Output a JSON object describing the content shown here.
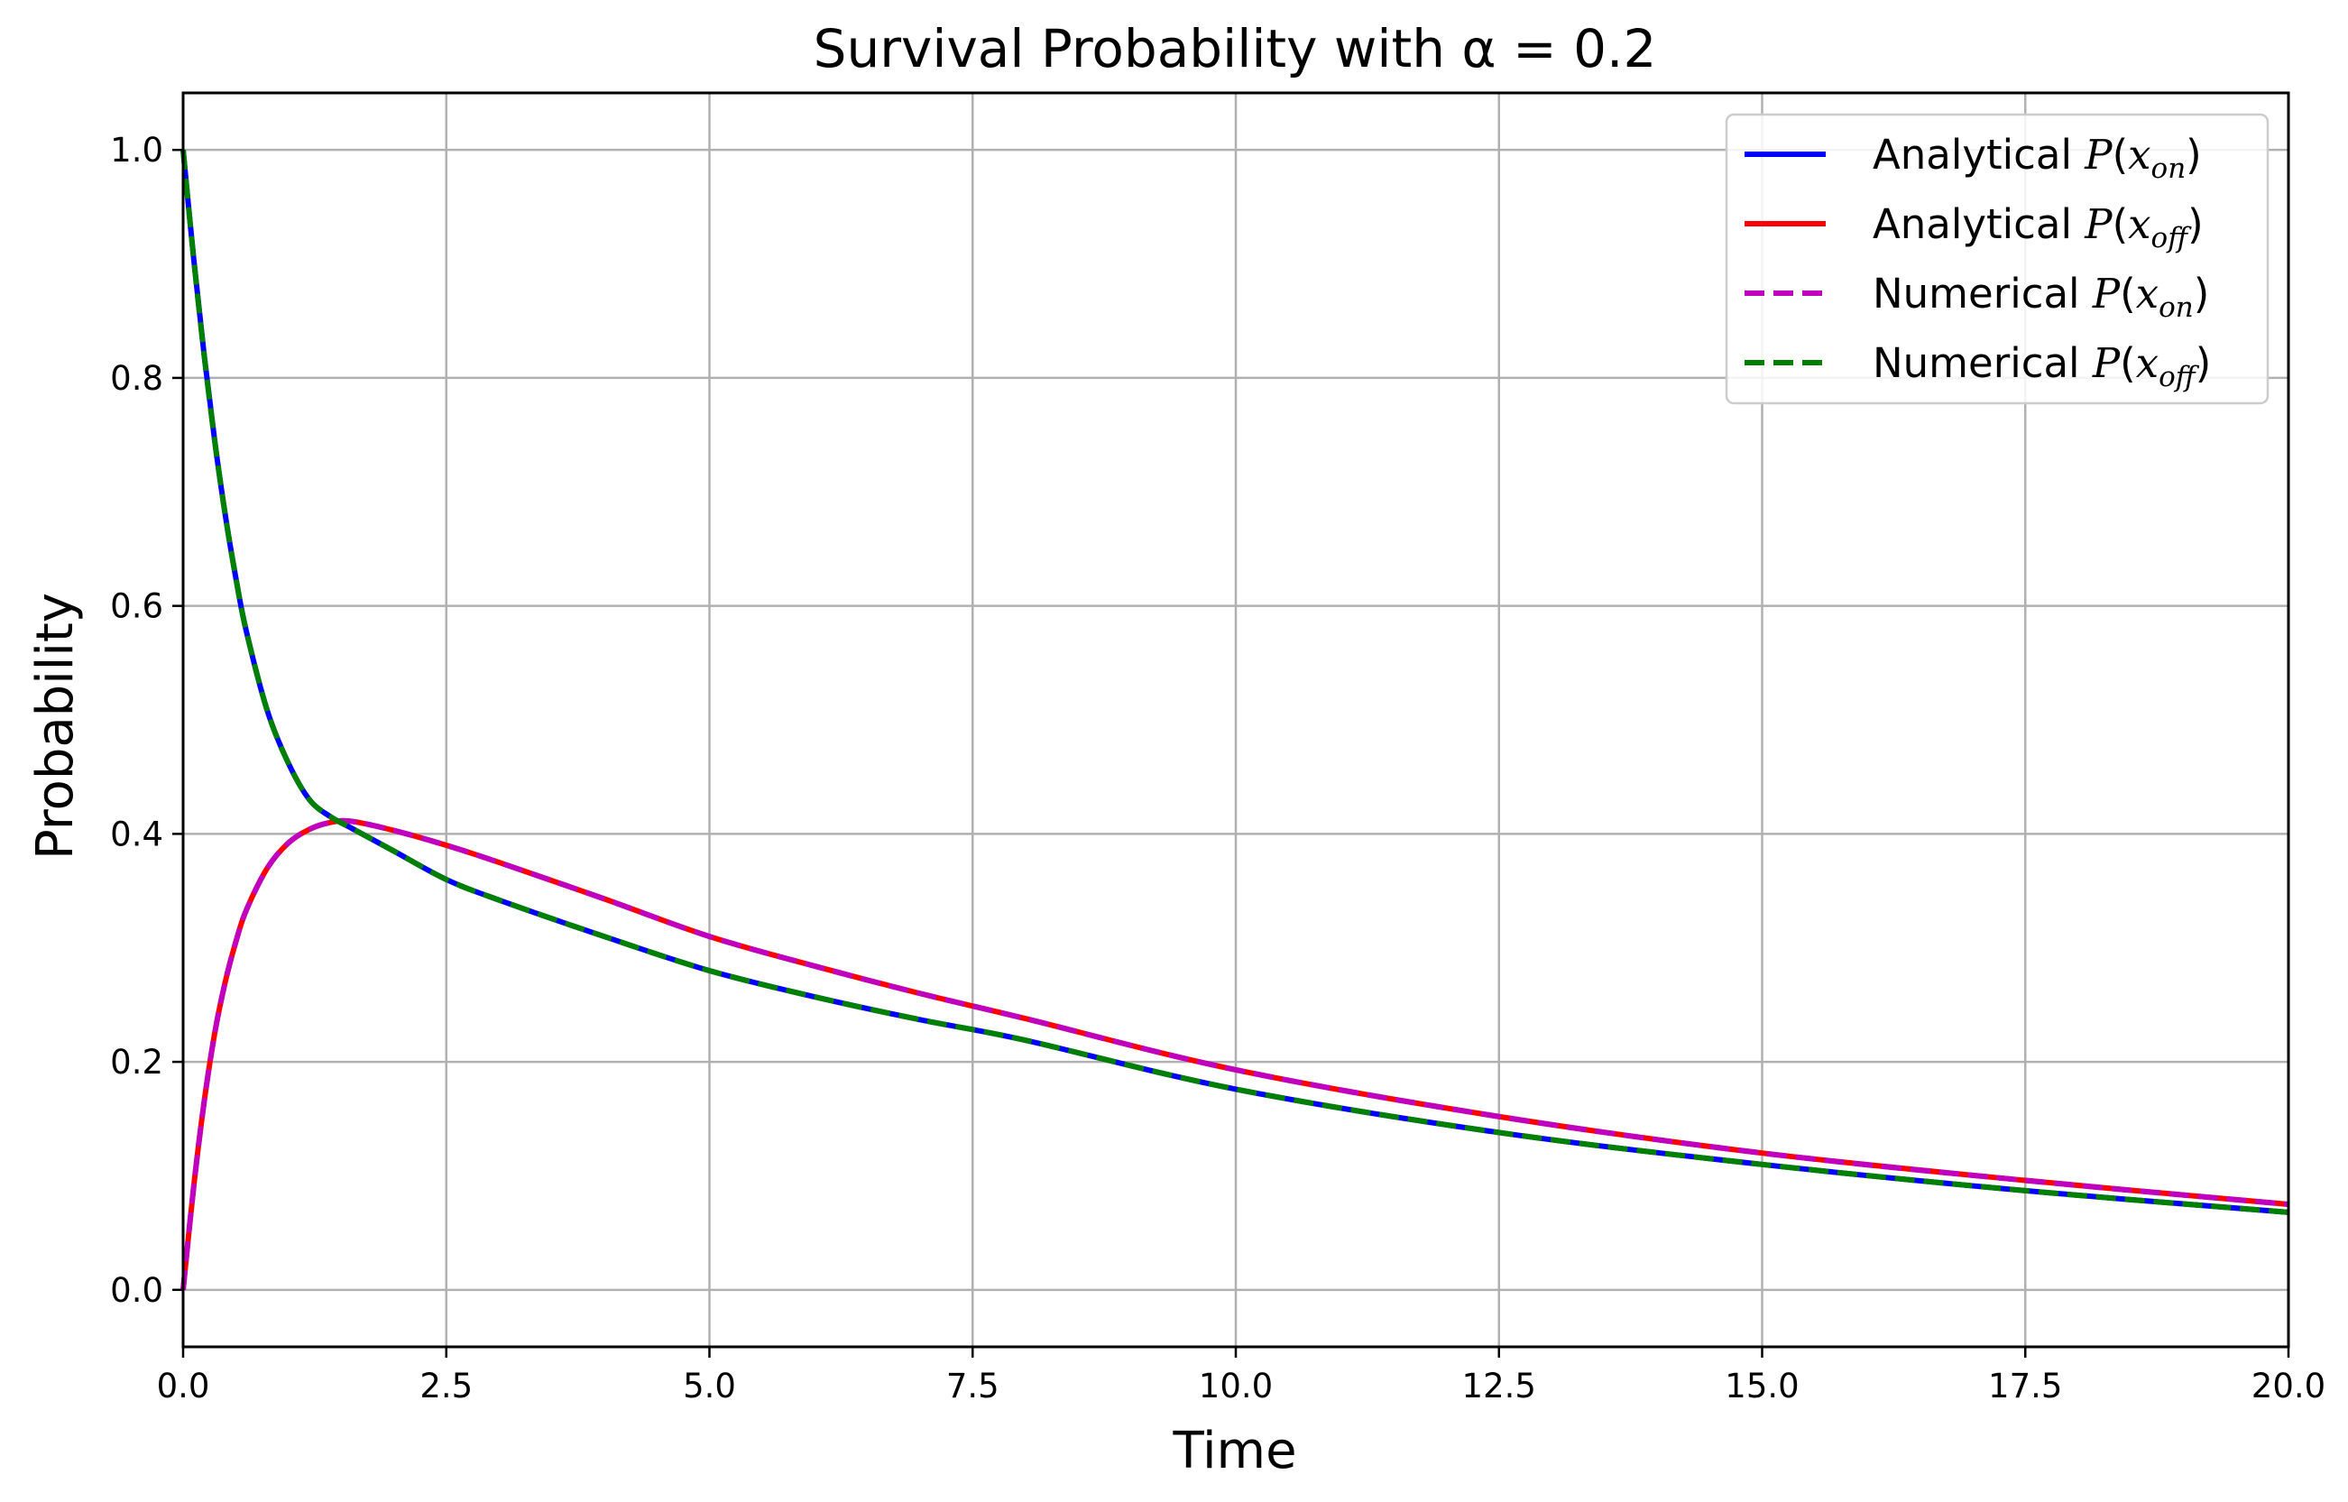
{
  "chart_data": {
    "type": "line",
    "title": "Survival Probability with α = 0.2",
    "xlabel": "Time",
    "ylabel": "Probability",
    "xlim": [
      0,
      20
    ],
    "ylim": [
      -0.05,
      1.05
    ],
    "grid": true,
    "legend_position": "top-right",
    "x_ticks": [
      {
        "value": 0,
        "label": "0.0"
      },
      {
        "value": 2.5,
        "label": "2.5"
      },
      {
        "value": 5,
        "label": "5.0"
      },
      {
        "value": 7.5,
        "label": "7.5"
      },
      {
        "value": 10,
        "label": "10.0"
      },
      {
        "value": 12.5,
        "label": "12.5"
      },
      {
        "value": 15,
        "label": "15.0"
      },
      {
        "value": 17.5,
        "label": "17.5"
      },
      {
        "value": 20,
        "label": "20.0"
      }
    ],
    "y_ticks": [
      {
        "value": 0,
        "label": "0.0"
      },
      {
        "value": 0.2,
        "label": "0.2"
      },
      {
        "value": 0.4,
        "label": "0.4"
      },
      {
        "value": 0.6,
        "label": "0.6"
      },
      {
        "value": 0.8,
        "label": "0.8"
      },
      {
        "value": 1.0,
        "label": "1.0"
      }
    ],
    "x": [
      0,
      0.1,
      0.2,
      0.3,
      0.4,
      0.5,
      0.6,
      0.8,
      1.0,
      1.2,
      1.4,
      1.6,
      2.0,
      2.5,
      3.0,
      4.0,
      5.0,
      6.0,
      7.0,
      8.0,
      10.0,
      12.5,
      15.0,
      17.5,
      20.0
    ],
    "series": [
      {
        "name": "Analytical",
        "sym": "P",
        "var": "x",
        "sub": "on",
        "color": "#0000ff",
        "style": "solid",
        "values": [
          1.0,
          0.905,
          0.82,
          0.745,
          0.68,
          0.625,
          0.578,
          0.508,
          0.462,
          0.43,
          0.415,
          0.405,
          0.385,
          0.36,
          0.342,
          0.31,
          0.28,
          0.257,
          0.237,
          0.219,
          0.176,
          0.138,
          0.11,
          0.087,
          0.068
        ]
      },
      {
        "name": "Analytical",
        "sym": "P",
        "var": "x",
        "sub": "off",
        "color": "#ff0000",
        "style": "solid",
        "values": [
          0.0,
          0.09,
          0.165,
          0.225,
          0.27,
          0.305,
          0.333,
          0.37,
          0.392,
          0.404,
          0.41,
          0.411,
          0.403,
          0.39,
          0.375,
          0.343,
          0.31,
          0.284,
          0.26,
          0.238,
          0.193,
          0.152,
          0.12,
          0.096,
          0.075
        ]
      },
      {
        "name": "Numerical",
        "sym": "P",
        "var": "x",
        "sub": "on",
        "color": "#bf00bf",
        "style": "dashed",
        "values": [
          0.0,
          0.09,
          0.165,
          0.225,
          0.27,
          0.305,
          0.333,
          0.37,
          0.392,
          0.404,
          0.41,
          0.411,
          0.403,
          0.39,
          0.375,
          0.343,
          0.31,
          0.284,
          0.26,
          0.238,
          0.193,
          0.152,
          0.12,
          0.096,
          0.075
        ]
      },
      {
        "name": "Numerical",
        "sym": "P",
        "var": "x",
        "sub": "off",
        "color": "#008000",
        "style": "dashed",
        "values": [
          1.0,
          0.905,
          0.82,
          0.745,
          0.68,
          0.625,
          0.578,
          0.508,
          0.462,
          0.43,
          0.415,
          0.405,
          0.385,
          0.36,
          0.342,
          0.31,
          0.28,
          0.257,
          0.237,
          0.219,
          0.176,
          0.138,
          0.11,
          0.087,
          0.068
        ]
      }
    ]
  }
}
